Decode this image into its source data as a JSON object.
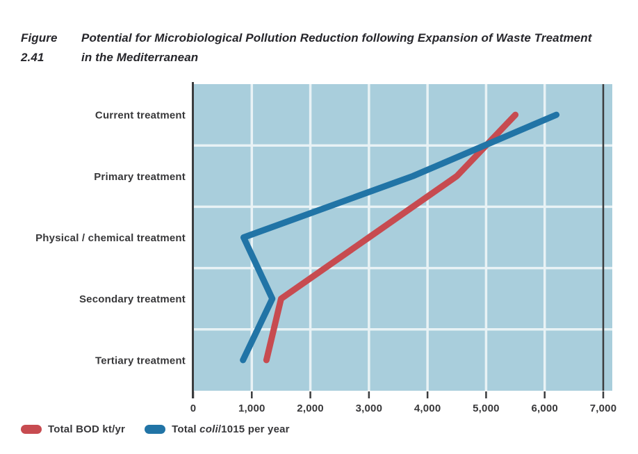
{
  "title": {
    "figure_label": "Figure 2.41",
    "text": "Potential for Microbiological Pollution Reduction following Expansion of Waste Treatment",
    "text2": "in the Mediterranean"
  },
  "legend": {
    "bod_label": "Total BOD kt/yr",
    "coli_prefix": "Total ",
    "coli_italic": "coli",
    "coli_suffix": "/1015 per year"
  },
  "chart_data": {
    "type": "line",
    "title": "Potential for Microbiological Pollution Reduction following Expansion of Waste Treatment in the Mediterranean",
    "orientation": "horizontal-categories-on-y",
    "categories": [
      "Current treatment",
      "Primary treatment",
      "Physical / chemical treatment",
      "Secondary treatment",
      "Tertiary treatment"
    ],
    "series": [
      {
        "name": "Total BOD kt/yr",
        "color": "#c74b50",
        "values": [
          5500,
          4500,
          3000,
          1500,
          1250
        ]
      },
      {
        "name": "Total coli/1015 per year",
        "color": "#2174a6",
        "values": [
          6200,
          3750,
          860,
          1350,
          850
        ]
      }
    ],
    "xlim": [
      0,
      7000
    ],
    "xticks": [
      0,
      1000,
      2000,
      3000,
      4000,
      5000,
      6000,
      7000
    ],
    "xtick_labels": [
      "0",
      "1,000",
      "2,000",
      "3,000",
      "4,000",
      "5,000",
      "6,000",
      "7,000"
    ],
    "grid": true,
    "legend_position": "bottom-left",
    "colors": {
      "plot_bg": "#a9cedc",
      "grid": "#e8f2f5",
      "axis": "#3b3c3e",
      "label_text": "#38383a"
    }
  }
}
